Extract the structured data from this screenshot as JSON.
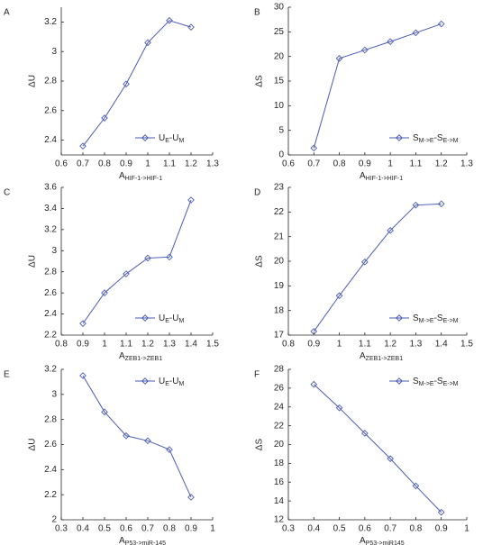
{
  "chart_data": [
    {
      "type": "line",
      "panel_label": "A",
      "xlabel": [
        "A",
        "HIF-1->HIF-1"
      ],
      "ylabel": "ΔU",
      "x": [
        0.7,
        0.8,
        0.9,
        1,
        1.1,
        1.2
      ],
      "series": [
        {
          "name": [
            "U",
            "E",
            "-U",
            "M"
          ],
          "color": "#4a5bb5",
          "values": [
            2.36,
            2.55,
            2.78,
            3.06,
            3.21,
            3.165
          ]
        }
      ],
      "xlim": [
        0.6,
        1.3
      ],
      "xticks": [
        0.6,
        0.7,
        0.8,
        0.9,
        1,
        1.1,
        1.2,
        1.3
      ],
      "ylim": [
        2.3,
        3.3
      ],
      "yticks": [
        2.4,
        2.6,
        2.8,
        3,
        3.2
      ],
      "legend": "lower right"
    },
    {
      "type": "line",
      "panel_label": "B",
      "xlabel": [
        "A",
        "HIF-1->HIF-1"
      ],
      "ylabel": "ΔS",
      "x": [
        0.7,
        0.8,
        0.9,
        1,
        1.1,
        1.2
      ],
      "series": [
        {
          "name": [
            "S",
            "M->E",
            "-S",
            "E->M"
          ],
          "color": "#4a5bb5",
          "values": [
            1.4,
            19.6,
            21.3,
            23.0,
            24.8,
            26.6
          ]
        }
      ],
      "xlim": [
        0.6,
        1.3
      ],
      "xticks": [
        0.6,
        0.7,
        0.8,
        0.9,
        1,
        1.1,
        1.2,
        1.3
      ],
      "ylim": [
        0,
        30
      ],
      "yticks": [
        0,
        5,
        10,
        15,
        20,
        25,
        30
      ],
      "legend": "lower right"
    },
    {
      "type": "line",
      "panel_label": "C",
      "xlabel": [
        "A",
        "ZEB1->ZEB1"
      ],
      "ylabel": "ΔU",
      "x": [
        0.9,
        1,
        1.1,
        1.2,
        1.3,
        1.4
      ],
      "series": [
        {
          "name": [
            "U",
            "E",
            "-U",
            "M"
          ],
          "color": "#4a5bb5",
          "values": [
            2.31,
            2.6,
            2.78,
            2.93,
            2.94,
            3.48
          ]
        }
      ],
      "xlim": [
        0.8,
        1.5
      ],
      "xticks": [
        0.8,
        0.9,
        1,
        1.1,
        1.2,
        1.3,
        1.4,
        1.5
      ],
      "ylim": [
        2.2,
        3.6
      ],
      "yticks": [
        2.2,
        2.4,
        2.6,
        2.8,
        3,
        3.2,
        3.4,
        3.6
      ],
      "legend": "lower right"
    },
    {
      "type": "line",
      "panel_label": "D",
      "xlabel": [
        "A",
        "ZEB1->ZEB1"
      ],
      "ylabel": "ΔS",
      "x": [
        0.9,
        1,
        1.1,
        1.2,
        1.3,
        1.4
      ],
      "series": [
        {
          "name": [
            "S",
            "M->E",
            "-S",
            "E->M"
          ],
          "color": "#4a5bb5",
          "values": [
            17.15,
            18.6,
            19.97,
            21.25,
            22.28,
            22.33
          ]
        }
      ],
      "xlim": [
        0.8,
        1.5
      ],
      "xticks": [
        0.8,
        0.9,
        1,
        1.1,
        1.2,
        1.3,
        1.4,
        1.5
      ],
      "ylim": [
        17,
        23
      ],
      "yticks": [
        17,
        18,
        19,
        20,
        21,
        22,
        23
      ],
      "legend": "lower right"
    },
    {
      "type": "line",
      "panel_label": "E",
      "xlabel": [
        "A",
        "P53->miR-145"
      ],
      "ylabel": "ΔU",
      "x": [
        0.4,
        0.5,
        0.6,
        0.7,
        0.8,
        0.9
      ],
      "series": [
        {
          "name": [
            "U",
            "E",
            "-U",
            "M"
          ],
          "color": "#4a5bb5",
          "values": [
            3.15,
            2.86,
            2.67,
            2.63,
            2.56,
            2.18
          ]
        }
      ],
      "xlim": [
        0.3,
        1
      ],
      "xticks": [
        0.3,
        0.4,
        0.5,
        0.6,
        0.7,
        0.8,
        0.9,
        1
      ],
      "ylim": [
        2,
        3.2
      ],
      "yticks": [
        2,
        2.2,
        2.4,
        2.6,
        2.8,
        3,
        3.2
      ],
      "legend": "upper right"
    },
    {
      "type": "line",
      "panel_label": "F",
      "xlabel": [
        "A",
        "P53->miR145"
      ],
      "ylabel": "ΔS",
      "x": [
        0.4,
        0.5,
        0.6,
        0.7,
        0.8,
        0.9
      ],
      "series": [
        {
          "name": [
            "S",
            "M->E",
            "-S",
            "E->M"
          ],
          "color": "#4a5bb5",
          "values": [
            26.4,
            23.9,
            21.2,
            18.5,
            15.6,
            12.8
          ]
        }
      ],
      "xlim": [
        0.3,
        1
      ],
      "xticks": [
        0.3,
        0.4,
        0.5,
        0.6,
        0.7,
        0.8,
        0.9,
        1
      ],
      "ylim": [
        12,
        28
      ],
      "yticks": [
        12,
        14,
        16,
        18,
        20,
        22,
        24,
        26,
        28
      ],
      "legend": "upper right"
    }
  ]
}
